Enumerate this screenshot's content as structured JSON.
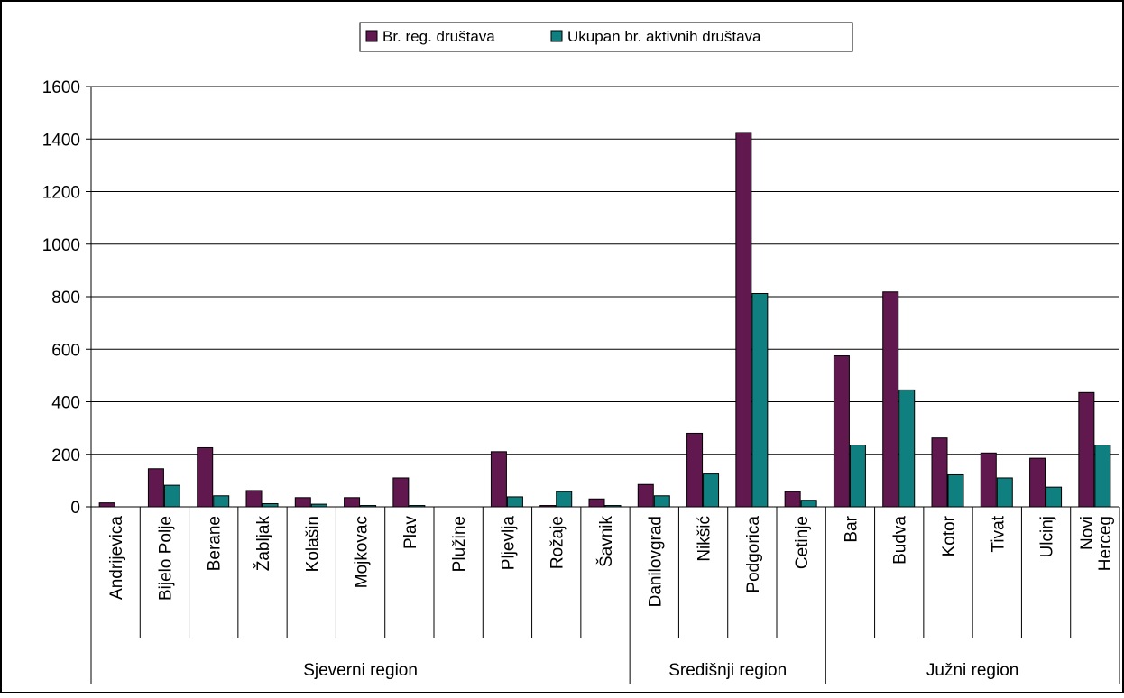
{
  "chart_data": {
    "type": "bar",
    "title": "",
    "xlabel": "",
    "ylabel": "",
    "ylim": [
      0,
      1600
    ],
    "yticks": [
      "0",
      "200",
      "400",
      "600",
      "800",
      "1000",
      "1200",
      "1400",
      "1600"
    ],
    "grid": true,
    "legend_position": "top",
    "categories": [
      "Andrijevica",
      "Bijelo Polje",
      "Berane",
      "Žabljak",
      "Kolašin",
      "Mojkovac",
      "Plav",
      "Plužine",
      "Pljevlja",
      "Rožaje",
      "Šavnik",
      "Danilovgrad",
      "Nikšić",
      "Podgorica",
      "Cetinje",
      "Bar",
      "Budva",
      "Kotor",
      "Tivat",
      "Ulcinj",
      "Herceg Novi"
    ],
    "category_lines": [
      [
        "Andrijevica"
      ],
      [
        "Bijelo Polje"
      ],
      [
        "Berane"
      ],
      [
        "Žabljak"
      ],
      [
        "Kolašin"
      ],
      [
        "Mojkovac"
      ],
      [
        "Plav"
      ],
      [
        "Plužine"
      ],
      [
        "Pljevlja"
      ],
      [
        "Rožaje"
      ],
      [
        "Šavnik"
      ],
      [
        "Danilovgrad"
      ],
      [
        "Nikšić"
      ],
      [
        "Podgorica"
      ],
      [
        "Cetinje"
      ],
      [
        "Bar"
      ],
      [
        "Budva"
      ],
      [
        "Kotor"
      ],
      [
        "Tivat"
      ],
      [
        "Ulcinj"
      ],
      [
        "Herceg",
        "Novi"
      ]
    ],
    "groups": [
      {
        "label": "Sjeverni region",
        "start": 0,
        "end": 10
      },
      {
        "label": "Središnji region",
        "start": 11,
        "end": 14
      },
      {
        "label": "Južni region",
        "start": 15,
        "end": 20
      }
    ],
    "series": [
      {
        "name": "Br. reg. društava",
        "color": "#60184F",
        "values": [
          15,
          145,
          225,
          62,
          35,
          35,
          110,
          0,
          210,
          5,
          30,
          85,
          280,
          1425,
          58,
          575,
          818,
          262,
          205,
          185,
          435
        ]
      },
      {
        "name": "Ukupan br. aktivnih društava",
        "color": "#0F7F80",
        "values": [
          0,
          82,
          42,
          12,
          10,
          5,
          5,
          0,
          38,
          58,
          5,
          42,
          125,
          812,
          25,
          235,
          445,
          122,
          110,
          75,
          235
        ]
      }
    ]
  }
}
